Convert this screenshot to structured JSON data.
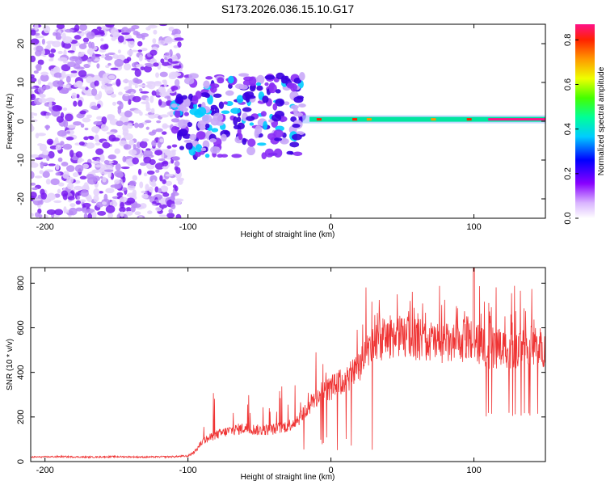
{
  "title": "S173.2026.036.15.10.G17",
  "chart_data": [
    {
      "type": "heatmap",
      "name": "spectrogram",
      "xlabel": "Height of straight line (km)",
      "ylabel": "Frequency (Hz)",
      "xlim": [
        -210,
        150
      ],
      "ylim": [
        -25,
        25
      ],
      "x_ticks": [
        -200,
        -100,
        0,
        100
      ],
      "y_ticks": [
        -20,
        -10,
        0,
        10,
        20
      ],
      "colorbar": {
        "label": "Normalized spectral amplitude",
        "range": [
          0.0,
          0.87
        ],
        "ticks": [
          0.0,
          0.2,
          0.4,
          0.6,
          0.8
        ],
        "tick_labels": [
          "0.0",
          "0.2",
          "0.4",
          "0.6",
          "0.8"
        ]
      },
      "features": [
        {
          "description": "diffuse noise",
          "x_range": [
            -210,
            -105
          ],
          "y_range": [
            -25,
            25
          ],
          "amplitude": 0.05
        },
        {
          "description": "scattered blobs",
          "x_range": [
            -110,
            -20
          ],
          "y_range": [
            -10,
            13
          ],
          "amplitude": 0.15
        },
        {
          "description": "steady tone",
          "x_range": [
            -20,
            150
          ],
          "y_range": [
            0,
            1
          ],
          "amplitude": 0.6
        }
      ]
    },
    {
      "type": "line",
      "name": "snr",
      "xlabel": "Height of straight line (km)",
      "ylabel": "SNR (10 * v/v)",
      "xlim": [
        -210,
        150
      ],
      "ylim": [
        0,
        870
      ],
      "x_ticks": [
        -200,
        -100,
        0,
        100
      ],
      "y_ticks": [
        0,
        200,
        400,
        600,
        800
      ],
      "color": "#ef3434",
      "series": [
        {
          "name": "SNR envelope",
          "x": [
            -210,
            -190,
            -170,
            -150,
            -130,
            -110,
            -100,
            -95,
            -90,
            -80,
            -70,
            -60,
            -50,
            -40,
            -30,
            -25,
            -20,
            -15,
            -10,
            -5,
            0,
            5,
            10,
            15,
            20,
            25,
            30,
            40,
            50,
            60,
            70,
            80,
            90,
            95,
            100,
            105,
            110,
            120,
            130,
            140,
            150
          ],
          "values": [
            20,
            22,
            20,
            22,
            20,
            22,
            25,
            45,
            90,
            120,
            140,
            150,
            140,
            145,
            160,
            180,
            210,
            250,
            290,
            310,
            330,
            350,
            360,
            390,
            430,
            500,
            530,
            560,
            560,
            550,
            540,
            530,
            520,
            560,
            540,
            520,
            500,
            510,
            500,
            520,
            510
          ]
        }
      ]
    }
  ]
}
